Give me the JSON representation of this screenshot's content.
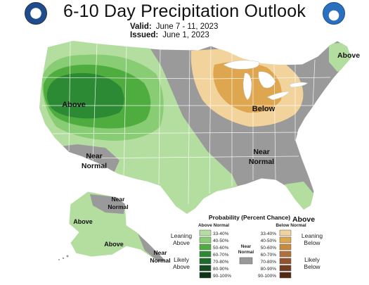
{
  "title": "6-10 Day Precipitation Outlook",
  "valid": {
    "label": "Valid:",
    "value": "June 7 - 11, 2023"
  },
  "issued": {
    "label": "Issued:",
    "value": "June 1, 2023"
  },
  "logos": {
    "left": "doc-seal-icon",
    "right": "noaa-logo-icon"
  },
  "map_labels": {
    "west_above": "Above",
    "midwest_below": "Below",
    "southwest_near_1": "Near",
    "southwest_near_2": "Normal",
    "southeast_near_1": "Near",
    "southeast_near_2": "Normal",
    "northeast_above": "Above",
    "florida_above": "Above",
    "alaska_near_1": "Near",
    "alaska_near_2": "Normal",
    "alaska_above_1": "Above",
    "alaska_above_2": "Above",
    "alaska_near_b_1": "Near",
    "alaska_near_b_2": "Normal"
  },
  "legend": {
    "title": "Probability (Percent Chance)",
    "above_header": "Above Normal",
    "below_header": "Below Normal",
    "near_header_1": "Near",
    "near_header_2": "Normal",
    "leaning_above_1": "Leaning",
    "leaning_above_2": "Above",
    "likely_above_1": "Likely",
    "likely_above_2": "Above",
    "leaning_below_1": "Leaning",
    "leaning_below_2": "Below",
    "likely_below_1": "Likely",
    "likely_below_2": "Below",
    "above_ranges": [
      "33-40%",
      "40-50%",
      "50-60%",
      "60-70%",
      "70-80%",
      "80-90%",
      "90-100%"
    ],
    "below_ranges": [
      "33-40%",
      "40-50%",
      "50-60%",
      "60-70%",
      "70-80%",
      "80-90%",
      "90-100%"
    ],
    "above_colors": [
      "#b3dea0",
      "#88cc73",
      "#4fad3f",
      "#2c8a35",
      "#1f6b2b",
      "#154d20",
      "#0c3315"
    ],
    "below_colors": [
      "#f2d39b",
      "#dda64f",
      "#c98a3c",
      "#b0703a",
      "#92542c",
      "#733d20",
      "#552812"
    ],
    "near_color": "#9a9a9a"
  },
  "colors": {
    "near_normal": "#9a9a9a",
    "above_33": "#b3dea0",
    "above_40": "#88cc73",
    "above_50": "#4fad3f",
    "above_60": "#2c8a35",
    "below_33": "#f2d39b",
    "below_40": "#dda64f",
    "water": "#ffffff",
    "border": "#ffffff"
  }
}
